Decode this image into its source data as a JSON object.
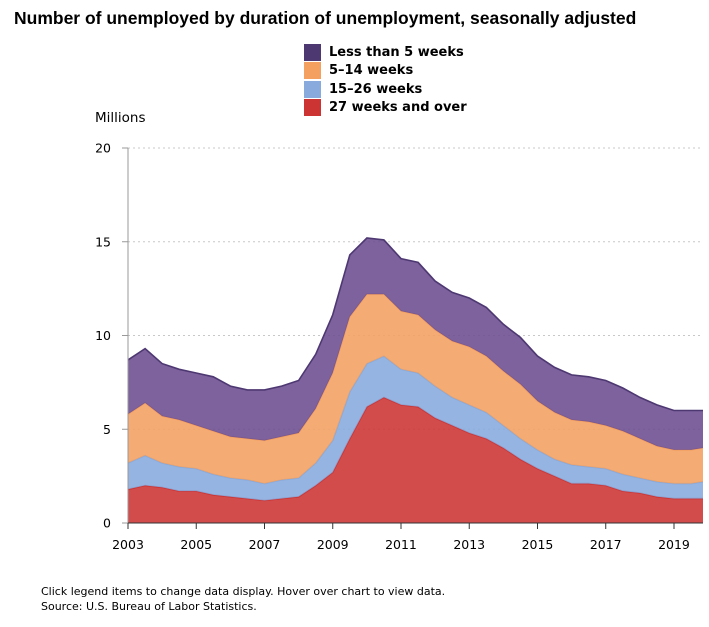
{
  "title": "Number of unemployed by duration of unemployment, seasonally adjusted",
  "footer": {
    "note": "Click legend items to change data display. Hover over chart to view data.",
    "source": "Source: U.S. Bureau of Labor Statistics."
  },
  "chart_data": {
    "type": "area",
    "stacked": true,
    "ylabel": "Millions",
    "ylim": [
      0,
      20
    ],
    "yticks": [
      0,
      5,
      10,
      15,
      20
    ],
    "xlim": [
      2003,
      2019.85
    ],
    "xticks": [
      2003,
      2005,
      2007,
      2009,
      2011,
      2013,
      2015,
      2017,
      2019
    ],
    "grid": "horizontal dotted",
    "legend_position": "top",
    "x": [
      2003.0,
      2003.5,
      2004.0,
      2004.5,
      2005.0,
      2005.5,
      2006.0,
      2006.5,
      2007.0,
      2007.5,
      2008.0,
      2008.5,
      2009.0,
      2009.5,
      2010.0,
      2010.5,
      2011.0,
      2011.5,
      2012.0,
      2012.5,
      2013.0,
      2013.5,
      2014.0,
      2014.5,
      2015.0,
      2015.5,
      2016.0,
      2016.5,
      2017.0,
      2017.5,
      2018.0,
      2018.5,
      2019.0,
      2019.5,
      2019.85
    ],
    "series": [
      {
        "name": "27 weeks and over",
        "color": "#cc3333",
        "values": [
          1.8,
          2.0,
          1.9,
          1.7,
          1.7,
          1.5,
          1.4,
          1.3,
          1.2,
          1.3,
          1.4,
          2.0,
          2.7,
          4.5,
          6.2,
          6.7,
          6.3,
          6.2,
          5.6,
          5.2,
          4.8,
          4.5,
          4.0,
          3.4,
          2.9,
          2.5,
          2.1,
          2.1,
          2.0,
          1.7,
          1.6,
          1.4,
          1.3,
          1.3,
          1.3
        ]
      },
      {
        "name": "15–26 weeks",
        "color": "#88aadd",
        "values": [
          1.4,
          1.6,
          1.3,
          1.3,
          1.2,
          1.1,
          1.0,
          1.0,
          0.9,
          1.0,
          1.0,
          1.2,
          1.7,
          2.5,
          2.3,
          2.2,
          1.9,
          1.8,
          1.7,
          1.5,
          1.5,
          1.4,
          1.2,
          1.1,
          1.0,
          0.9,
          1.0,
          0.9,
          0.9,
          0.9,
          0.8,
          0.8,
          0.8,
          0.8,
          0.9
        ]
      },
      {
        "name": "5–14 weeks",
        "color": "#f4a061",
        "values": [
          2.6,
          2.8,
          2.5,
          2.5,
          2.3,
          2.3,
          2.2,
          2.2,
          2.3,
          2.3,
          2.4,
          2.9,
          3.6,
          4.0,
          3.7,
          3.3,
          3.1,
          3.1,
          3.0,
          3.0,
          3.1,
          3.0,
          2.9,
          2.9,
          2.6,
          2.5,
          2.4,
          2.4,
          2.3,
          2.3,
          2.1,
          1.9,
          1.8,
          1.8,
          1.8
        ]
      },
      {
        "name": "Less than 5 weeks",
        "color": "#6b4c8f",
        "values": [
          2.9,
          2.9,
          2.8,
          2.7,
          2.8,
          2.9,
          2.7,
          2.6,
          2.7,
          2.7,
          2.8,
          2.9,
          3.1,
          3.3,
          3.0,
          2.9,
          2.8,
          2.8,
          2.6,
          2.6,
          2.6,
          2.6,
          2.5,
          2.5,
          2.4,
          2.4,
          2.4,
          2.4,
          2.4,
          2.3,
          2.2,
          2.2,
          2.1,
          2.1,
          2.0
        ]
      }
    ],
    "legend": [
      {
        "label": "Less than 5 weeks",
        "color": "#4e3872"
      },
      {
        "label": "5–14 weeks",
        "color": "#f4a061"
      },
      {
        "label": "15–26 weeks",
        "color": "#88aadd"
      },
      {
        "label": "27 weeks and over",
        "color": "#cc3333"
      }
    ]
  }
}
